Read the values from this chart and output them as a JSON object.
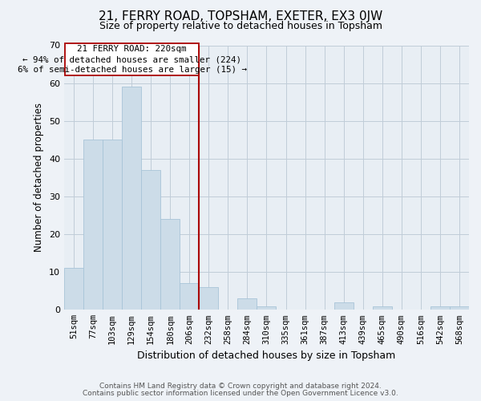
{
  "title": "21, FERRY ROAD, TOPSHAM, EXETER, EX3 0JW",
  "subtitle": "Size of property relative to detached houses in Topsham",
  "xlabel": "Distribution of detached houses by size in Topsham",
  "ylabel": "Number of detached properties",
  "bar_color": "#ccdce8",
  "bar_edge_color": "#a8c4d8",
  "categories": [
    "51sqm",
    "77sqm",
    "103sqm",
    "129sqm",
    "154sqm",
    "180sqm",
    "206sqm",
    "232sqm",
    "258sqm",
    "284sqm",
    "310sqm",
    "335sqm",
    "361sqm",
    "387sqm",
    "413sqm",
    "439sqm",
    "465sqm",
    "490sqm",
    "516sqm",
    "542sqm",
    "568sqm"
  ],
  "values": [
    11,
    45,
    45,
    59,
    37,
    24,
    7,
    6,
    0,
    3,
    1,
    0,
    0,
    0,
    2,
    0,
    1,
    0,
    0,
    1,
    1
  ],
  "ylim": [
    0,
    70
  ],
  "yticks": [
    0,
    10,
    20,
    30,
    40,
    50,
    60,
    70
  ],
  "marker_label": "21 FERRY ROAD: 220sqm",
  "annotation_line1": "← 94% of detached houses are smaller (224)",
  "annotation_line2": "6% of semi-detached houses are larger (15) →",
  "vline_color": "#aa0000",
  "annotation_box_color": "#ffffff",
  "annotation_box_edge": "#aa0000",
  "footer_line1": "Contains HM Land Registry data © Crown copyright and database right 2024.",
  "footer_line2": "Contains public sector information licensed under the Open Government Licence v3.0.",
  "background_color": "#eef2f7",
  "plot_bg_color": "#e8eef4",
  "grid_color": "#c0ccd8"
}
